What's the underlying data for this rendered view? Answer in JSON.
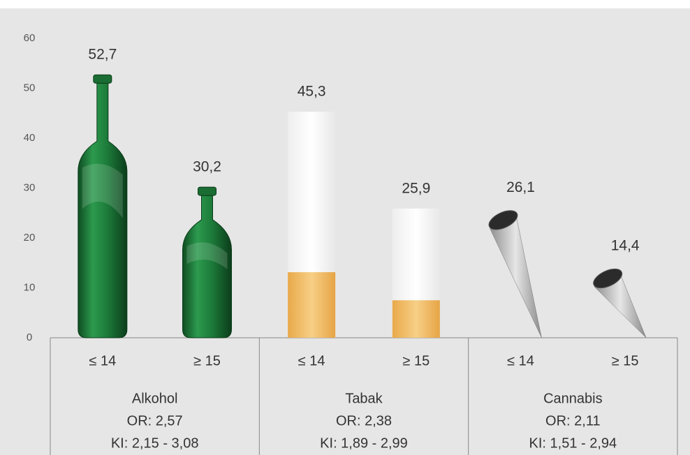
{
  "chart_data": {
    "type": "pictorial-bar",
    "categories": [
      "≤ 14",
      "≥ 15",
      "≤ 14",
      "≥ 15",
      "≤ 14",
      "≥ 15"
    ],
    "values": [
      52.7,
      30.2,
      45.3,
      25.9,
      26.1,
      14.4
    ],
    "value_labels": [
      "52,7",
      "30,2",
      "45,3",
      "25,9",
      "26,1",
      "14,4"
    ],
    "groups": [
      {
        "label": "Alkohol",
        "or": "OR: 2,57",
        "ki": "KI: 2,15 - 3,08",
        "icon": "bottle"
      },
      {
        "label": "Tabak",
        "or": "OR: 2,38",
        "ki": "KI: 1,89 - 2,99",
        "icon": "cigarette"
      },
      {
        "label": "Cannabis",
        "or": "OR: 2,11",
        "ki": "KI: 1,51 - 2,94",
        "icon": "joint"
      }
    ],
    "ylim": [
      0,
      60
    ],
    "yticks": [
      0,
      10,
      20,
      30,
      40,
      50,
      60
    ],
    "grid": false
  }
}
